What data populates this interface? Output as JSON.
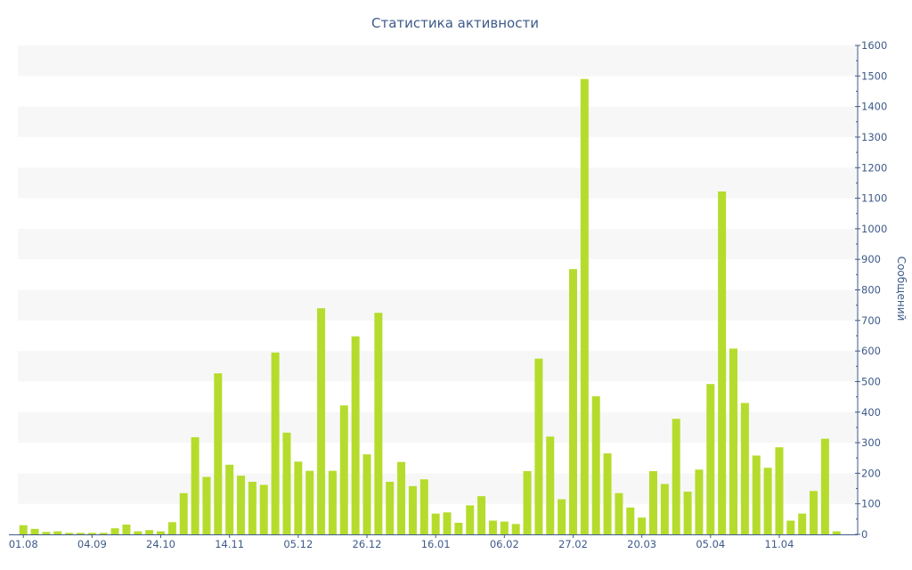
{
  "chart_data": {
    "type": "bar",
    "title": "Статистика активности",
    "ylabel": "Сообщений",
    "xlabel": "",
    "ylim": [
      0,
      1600
    ],
    "y_ticks": [
      0,
      100,
      200,
      300,
      400,
      500,
      600,
      700,
      800,
      900,
      1000,
      1100,
      1200,
      1300,
      1400,
      1500,
      1600
    ],
    "y_axis_side": "right",
    "x_tick_labels": [
      {
        "label": "01.08",
        "index": 0
      },
      {
        "label": "04.09",
        "index": 6
      },
      {
        "label": "24.10",
        "index": 12
      },
      {
        "label": "14.11",
        "index": 18
      },
      {
        "label": "05.12",
        "index": 24
      },
      {
        "label": "26.12",
        "index": 30
      },
      {
        "label": "16.01",
        "index": 36
      },
      {
        "label": "06.02",
        "index": 42
      },
      {
        "label": "27.02",
        "index": 48
      },
      {
        "label": "20.03",
        "index": 54
      },
      {
        "label": "05.04",
        "index": 60
      },
      {
        "label": "11.04",
        "index": 66
      }
    ],
    "grid": "alternating horizontal bands",
    "bar_color": "#b5dc2c",
    "values": [
      30,
      18,
      8,
      10,
      5,
      5,
      5,
      5,
      20,
      32,
      10,
      14,
      10,
      40,
      135,
      318,
      188,
      527,
      228,
      192,
      172,
      162,
      595,
      333,
      238,
      208,
      740,
      208,
      422,
      648,
      262,
      725,
      172,
      237,
      158,
      180,
      68,
      72,
      38,
      95,
      125,
      45,
      42,
      34,
      207,
      575,
      320,
      115,
      868,
      1490,
      452,
      265,
      135,
      88,
      55,
      207,
      165,
      378,
      140,
      212,
      492,
      1122,
      608,
      430,
      258,
      218,
      285,
      45,
      68,
      142,
      313,
      10
    ]
  }
}
